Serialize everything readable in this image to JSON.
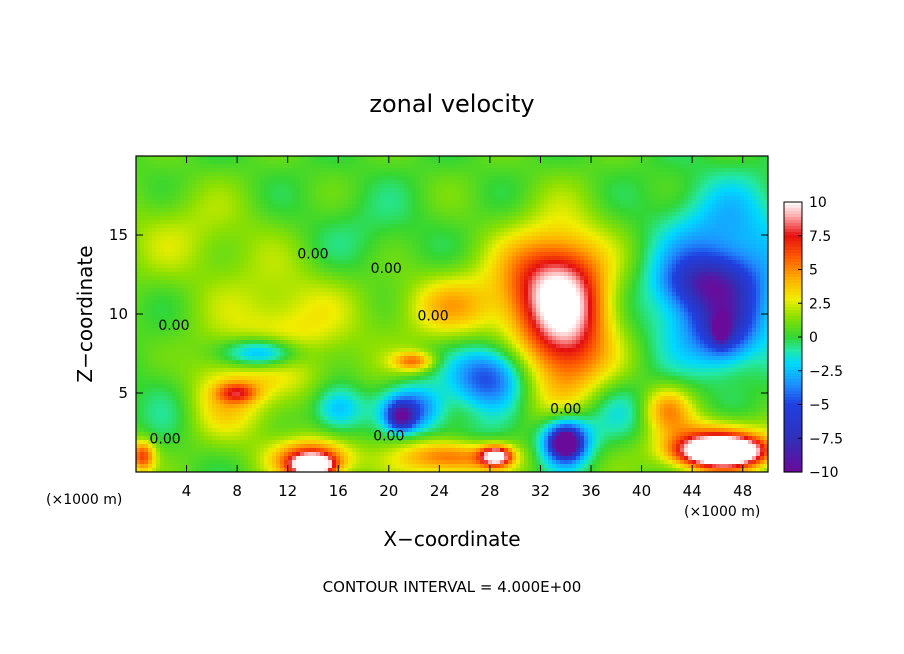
{
  "chart_data": {
    "type": "heatmap",
    "title": "zonal velocity",
    "xlabel": "X−coordinate",
    "ylabel": "Z−coordinate",
    "x_unit_left": "(×1000 m)",
    "x_unit_right": "(×1000 m)",
    "footer": "CONTOUR INTERVAL = 4.000E+00",
    "xlim": [
      0,
      50
    ],
    "ylim": [
      0,
      20
    ],
    "x_ticks": [
      4,
      8,
      12,
      16,
      20,
      24,
      28,
      32,
      36,
      40,
      44,
      48
    ],
    "x_tick_labels": [
      "4",
      "8",
      "12",
      "16",
      "20",
      "24",
      "28",
      "32",
      "36",
      "40",
      "44",
      "48"
    ],
    "y_ticks": [
      5,
      10,
      15
    ],
    "y_tick_labels": [
      "5",
      "10",
      "15"
    ],
    "colorbar": {
      "range": [
        -10,
        10
      ],
      "ticks": [
        10,
        7.5,
        5,
        2.5,
        0,
        -2.5,
        -5,
        -7.5,
        -10
      ],
      "tick_labels": [
        "10",
        "7.5",
        "5",
        "2.5",
        "0",
        "−2.5",
        "−5",
        "−7.5",
        "−10"
      ],
      "colors": [
        "#6a0a9a",
        "#3030b8",
        "#2040e0",
        "#1e90ff",
        "#00d8ff",
        "#22e8a8",
        "#33d633",
        "#8ee000",
        "#f0ee00",
        "#ffb300",
        "#ff6000",
        "#e51010",
        "#ffb0b0",
        "#ffffff"
      ]
    },
    "contour_labels": [
      {
        "x": 14.0,
        "y": 13.5,
        "text": "0.00"
      },
      {
        "x": 19.8,
        "y": 12.6,
        "text": "0.00"
      },
      {
        "x": 23.5,
        "y": 9.6,
        "text": "0.00"
      },
      {
        "x": 3.0,
        "y": 9.0,
        "text": "0.00"
      },
      {
        "x": 2.3,
        "y": 1.8,
        "text": "0.00"
      },
      {
        "x": 20.0,
        "y": 2.0,
        "text": "0.00"
      },
      {
        "x": 34.0,
        "y": 3.7,
        "text": "0.00"
      }
    ],
    "blobs": [
      {
        "x": 25,
        "y": 9,
        "rx": 40,
        "ry": 14,
        "v": 0.8
      },
      {
        "x": 4,
        "y": 15,
        "rx": 6,
        "ry": 3,
        "v": 1.5
      },
      {
        "x": 12,
        "y": 9,
        "rx": 5,
        "ry": 4,
        "v": 2.5
      },
      {
        "x": 7,
        "y": 5,
        "rx": 4,
        "ry": 3,
        "v": 3
      },
      {
        "x": 8,
        "y": 5,
        "rx": 1.5,
        "ry": 0.6,
        "v": 4
      },
      {
        "x": 10,
        "y": 7.5,
        "rx": 3,
        "ry": 1,
        "v": -6
      },
      {
        "x": 16,
        "y": 4,
        "rx": 2,
        "ry": 1.5,
        "v": -4
      },
      {
        "x": 25,
        "y": 10.5,
        "rx": 4,
        "ry": 2,
        "v": 3
      },
      {
        "x": 22,
        "y": 7,
        "rx": 1.6,
        "ry": 0.6,
        "v": 4.5
      },
      {
        "x": 34,
        "y": 9.5,
        "rx": 3.5,
        "ry": 5,
        "v": 8
      },
      {
        "x": 32,
        "y": 12,
        "rx": 4,
        "ry": 3,
        "v": 4
      },
      {
        "x": 28,
        "y": 6,
        "rx": 3,
        "ry": 2,
        "v": -6
      },
      {
        "x": 22,
        "y": 4,
        "rx": 2.5,
        "ry": 1.5,
        "v": -5
      },
      {
        "x": 21,
        "y": 3.5,
        "rx": 1,
        "ry": 0.8,
        "v": -7
      },
      {
        "x": 26,
        "y": 2,
        "rx": 3,
        "ry": 1.2,
        "v": -2
      },
      {
        "x": 34,
        "y": 2,
        "rx": 2,
        "ry": 1.6,
        "v": -8
      },
      {
        "x": 34,
        "y": 1.8,
        "rx": 0.9,
        "ry": 0.7,
        "v": -11
      },
      {
        "x": 14,
        "y": 0.8,
        "rx": 3,
        "ry": 1.2,
        "v": 7
      },
      {
        "x": 14,
        "y": 0.4,
        "rx": 1.5,
        "ry": 0.6,
        "v": 10.5
      },
      {
        "x": 25,
        "y": 1,
        "rx": 4,
        "ry": 1.2,
        "v": 6
      },
      {
        "x": 28.5,
        "y": 1,
        "rx": 1.2,
        "ry": 0.6,
        "v": 9
      },
      {
        "x": 46,
        "y": 1.5,
        "rx": 4,
        "ry": 1.5,
        "v": 8
      },
      {
        "x": 46.5,
        "y": 1.3,
        "rx": 3,
        "ry": 0.8,
        "v": 10.5
      },
      {
        "x": 42,
        "y": 4,
        "rx": 2,
        "ry": 1.5,
        "v": 4
      },
      {
        "x": 46,
        "y": 11,
        "rx": 5,
        "ry": 4,
        "v": -6
      },
      {
        "x": 45,
        "y": 12,
        "rx": 3,
        "ry": 1.5,
        "v": -4
      },
      {
        "x": 46.5,
        "y": 9,
        "rx": 2,
        "ry": 2,
        "v": -4
      },
      {
        "x": 46.3,
        "y": 9,
        "rx": 0.6,
        "ry": 0.8,
        "v": -6
      },
      {
        "x": 47,
        "y": 16,
        "rx": 5,
        "ry": 3,
        "v": -2
      },
      {
        "x": 38,
        "y": 4,
        "rx": 3,
        "ry": 2,
        "v": -2
      },
      {
        "x": 3,
        "y": 5,
        "rx": 3,
        "ry": 3,
        "v": -1.5
      },
      {
        "x": 18,
        "y": 15,
        "rx": 6,
        "ry": 3,
        "v": -1
      },
      {
        "x": 0.5,
        "y": 1,
        "rx": 1,
        "ry": 1,
        "v": 6
      }
    ]
  }
}
